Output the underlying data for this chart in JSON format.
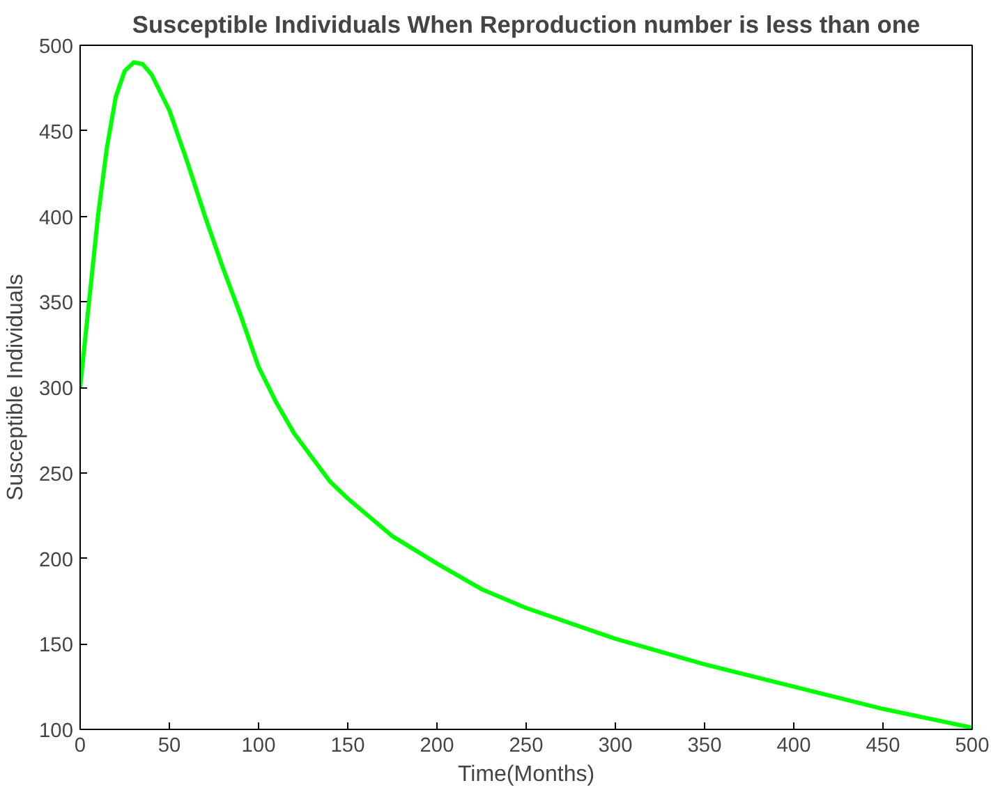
{
  "chart_data": {
    "type": "line",
    "title": "Susceptible Individuals When Reproduction number is less than one",
    "xlabel": "Time(Months)",
    "ylabel": "Susceptible Individuals",
    "x": [
      0,
      5,
      10,
      15,
      20,
      25,
      30,
      35,
      40,
      50,
      60,
      70,
      80,
      90,
      100,
      110,
      120,
      140,
      150,
      175,
      200,
      225,
      250,
      300,
      350,
      400,
      450,
      500
    ],
    "series": [
      {
        "color": "#00ff00",
        "values": [
          300,
          350,
          400,
          440,
          470,
          485,
          490,
          489,
          483,
          462,
          432,
          400,
          370,
          342,
          312,
          291,
          273,
          245,
          235,
          213,
          197,
          182,
          171,
          153,
          138,
          125,
          112,
          101
        ]
      }
    ],
    "xlim": [
      0,
      500
    ],
    "ylim": [
      100,
      500
    ],
    "xticks": [
      0,
      50,
      100,
      150,
      200,
      250,
      300,
      350,
      400,
      450,
      500
    ],
    "yticks": [
      100,
      150,
      200,
      250,
      300,
      350,
      400,
      450,
      500
    ],
    "grid": false,
    "marker": "none",
    "line_style": "solid"
  }
}
